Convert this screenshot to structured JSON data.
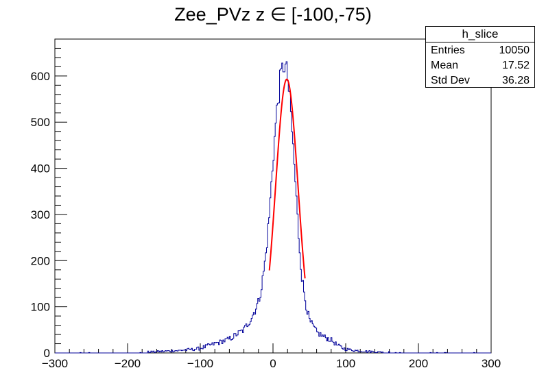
{
  "chart_data": {
    "type": "histogram",
    "title": "Zee_PVz z ∈ [-100,-75)",
    "xlim": [
      -300,
      300
    ],
    "ylim": [
      0,
      680
    ],
    "xticks": [
      -300,
      -200,
      -100,
      0,
      100,
      200,
      300
    ],
    "yticks": [
      0,
      100,
      200,
      300,
      400,
      500,
      600
    ],
    "xtick_labels": [
      "−300",
      "−200",
      "−100",
      "0",
      "100",
      "200",
      "300"
    ],
    "ytick_labels": [
      "0",
      "100",
      "200",
      "300",
      "400",
      "500",
      "600"
    ],
    "hist": {
      "name": "h_slice",
      "color": "#000099",
      "x": [
        -100,
        -90,
        -80,
        -70,
        -60,
        -50,
        -40,
        -30,
        -20,
        -15,
        -10,
        -5,
        0,
        5,
        10,
        15,
        20,
        25,
        30,
        35,
        40,
        45,
        50,
        60,
        70,
        80,
        90,
        100,
        110,
        120
      ],
      "y": [
        10,
        15,
        20,
        25,
        30,
        40,
        50,
        75,
        110,
        150,
        210,
        300,
        420,
        520,
        590,
        630,
        600,
        510,
        390,
        260,
        160,
        110,
        70,
        45,
        35,
        28,
        15,
        8,
        6,
        4
      ]
    },
    "fit": {
      "type": "gaussian",
      "color": "#ff0000",
      "amplitude": 593,
      "mean": 19,
      "sigma": 15.5,
      "range": [
        -5,
        44
      ]
    },
    "stats": {
      "name": "h_slice",
      "entries_label": "Entries",
      "entries": "10050",
      "mean_label": "Mean",
      "mean": "17.52",
      "std_label": "Std Dev",
      "std": "36.28"
    }
  }
}
